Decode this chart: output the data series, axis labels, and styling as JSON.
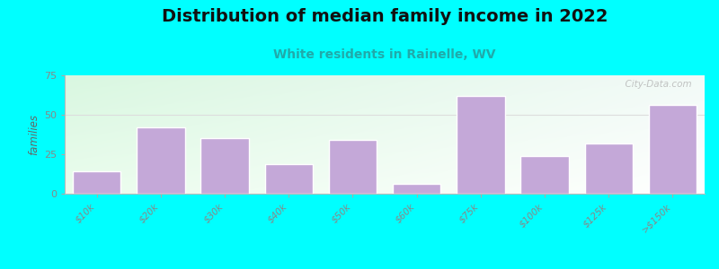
{
  "categories": [
    "$10k",
    "$20k",
    "$30k",
    "$40k",
    "$50k",
    "$60k",
    "$75k",
    "$100k",
    "$125k",
    ">$150k"
  ],
  "values": [
    14,
    42,
    35,
    19,
    34,
    6,
    62,
    24,
    32,
    56
  ],
  "bar_color": "#C4A8D8",
  "bar_edge_color": "#ffffff",
  "title": "Distribution of median family income in 2022",
  "subtitle": "White residents in Rainelle, WV",
  "ylabel": "families",
  "ylim": [
    0,
    75
  ],
  "yticks": [
    0,
    25,
    50,
    75
  ],
  "background_color": "#00FFFF",
  "title_fontsize": 14,
  "subtitle_fontsize": 10,
  "subtitle_color": "#20AAAA",
  "ylabel_color": "#666666",
  "tick_label_color": "#888888",
  "watermark_text": "  City-Data.com",
  "grid_color": "#dddddd",
  "gradient_topleft": [
    0.85,
    0.97,
    0.88
  ],
  "gradient_topright": [
    0.95,
    0.98,
    0.97
  ],
  "gradient_bottomleft": [
    0.92,
    0.99,
    0.93
  ],
  "gradient_bottomright": [
    1.0,
    1.0,
    1.0
  ]
}
